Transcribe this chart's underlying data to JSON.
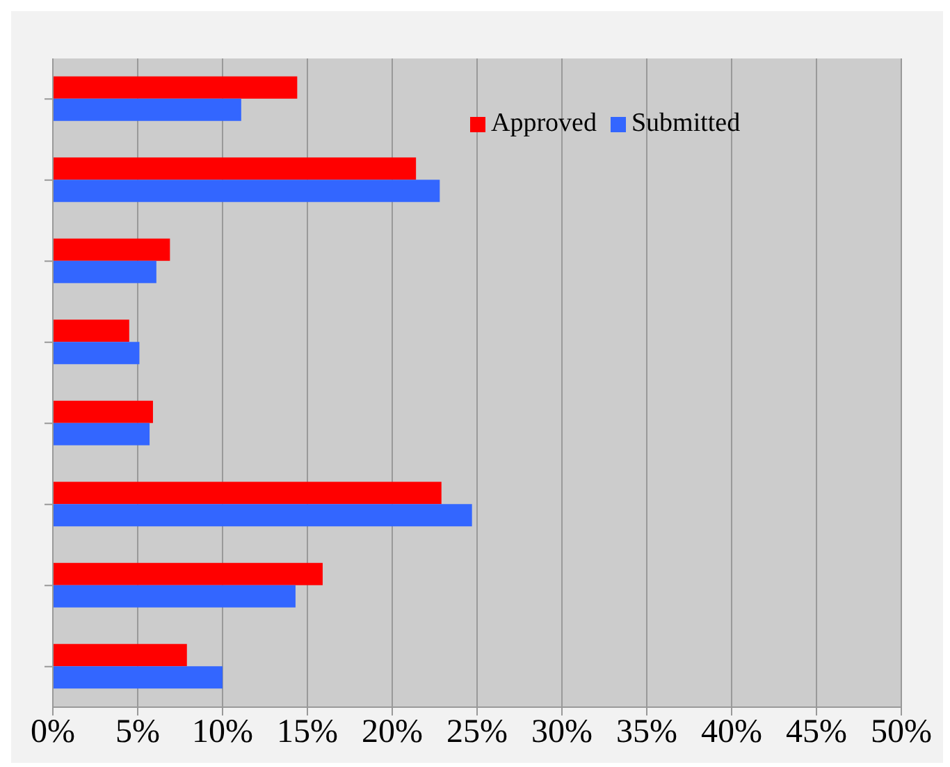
{
  "chart_data": {
    "type": "bar",
    "orientation": "horizontal",
    "categories": [
      null,
      null,
      null,
      null,
      null,
      null,
      null,
      null
    ],
    "series": [
      {
        "name": "Approved",
        "color": "#ff0000",
        "values": [
          14.4,
          21.4,
          6.9,
          4.5,
          5.9,
          22.9,
          15.9,
          7.9
        ]
      },
      {
        "name": "Submitted",
        "color": "#3366ff",
        "values": [
          11.1,
          22.8,
          6.1,
          5.1,
          5.7,
          24.7,
          14.3,
          10.0
        ]
      }
    ],
    "xlim": [
      0,
      50
    ],
    "xticks": [
      {
        "value": 0,
        "label": "0%"
      },
      {
        "value": 5,
        "label": "5%"
      },
      {
        "value": 10,
        "label": "10%"
      },
      {
        "value": 15,
        "label": "15%"
      },
      {
        "value": 20,
        "label": "20%"
      },
      {
        "value": 25,
        "label": "25%"
      },
      {
        "value": 30,
        "label": "30%"
      },
      {
        "value": 35,
        "label": "35%"
      },
      {
        "value": 40,
        "label": "40%"
      },
      {
        "value": 45,
        "label": "45%"
      },
      {
        "value": 50,
        "label": "50%"
      }
    ],
    "grid": "x",
    "legend": "top right"
  }
}
